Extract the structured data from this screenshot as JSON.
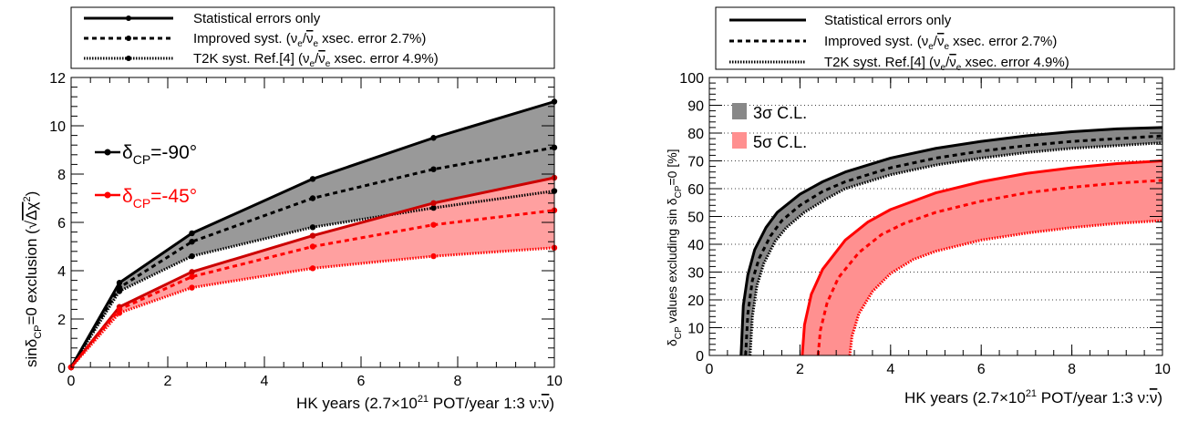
{
  "legend_entries": [
    {
      "style": "solid",
      "label_parts": [
        "Statistical errors only"
      ]
    },
    {
      "style": "dashed",
      "label_parts": [
        "Improved syst. (",
        "ν",
        "e",
        "/",
        "ν",
        "e",
        " xsec. error 2.7%)"
      ]
    },
    {
      "style": "dotted",
      "label_parts": [
        "T2K syst. Ref.[4] (",
        "ν",
        "e",
        "/",
        "ν",
        "e",
        " xsec. error 4.9%)"
      ]
    }
  ],
  "chart_data": [
    {
      "type": "line",
      "xlabel_parts": [
        "HK years (2.7×10",
        "21",
        " POT/year 1:3 ν:",
        "ν",
        ")"
      ],
      "ylabel_parts": [
        "sinδ",
        "CP",
        "=0 exclusion (",
        "√",
        "Δχ",
        "2",
        ")"
      ],
      "xlim": [
        0,
        10
      ],
      "ylim": [
        0,
        12
      ],
      "xticks": [
        0,
        2,
        4,
        6,
        8,
        10
      ],
      "yticks": [
        0,
        2,
        4,
        6,
        8,
        10,
        12
      ],
      "annotations": [
        {
          "label": "δ",
          "sub": "CP",
          "value": "=-90°",
          "color": "#000000"
        },
        {
          "label": "δ",
          "sub": "CP",
          "value": "=-45°",
          "color": "#ff0000"
        }
      ],
      "series": [
        {
          "group": "δCP=-90°",
          "style": "solid",
          "color": "#000000",
          "x": [
            0,
            1,
            2.5,
            5,
            7.5,
            10
          ],
          "y": [
            0,
            3.5,
            5.55,
            7.8,
            9.5,
            11.0
          ]
        },
        {
          "group": "δCP=-90°",
          "style": "dashed",
          "color": "#000000",
          "x": [
            0,
            1,
            2.5,
            5,
            7.5,
            10
          ],
          "y": [
            0,
            3.3,
            5.2,
            7.0,
            8.2,
            9.1
          ]
        },
        {
          "group": "δCP=-90°",
          "style": "dotted",
          "color": "#000000",
          "x": [
            0,
            1,
            2.5,
            5,
            7.5,
            10
          ],
          "y": [
            0,
            3.15,
            4.6,
            5.8,
            6.6,
            7.3
          ]
        },
        {
          "group": "δCP=-45°",
          "style": "solid",
          "color": "#cc0000",
          "x": [
            0,
            1,
            2.5,
            5,
            7.5,
            10
          ],
          "y": [
            0,
            2.5,
            3.95,
            5.45,
            6.8,
            7.85
          ]
        },
        {
          "group": "δCP=-45°",
          "style": "dashed",
          "color": "#ff0000",
          "x": [
            0,
            1,
            2.5,
            5,
            7.5,
            10
          ],
          "y": [
            0,
            2.4,
            3.75,
            5.0,
            5.9,
            6.5
          ]
        },
        {
          "group": "δCP=-45°",
          "style": "dotted",
          "color": "#ff0000",
          "x": [
            0,
            1,
            2.5,
            5,
            7.5,
            10
          ],
          "y": [
            0,
            2.25,
            3.3,
            4.1,
            4.6,
            4.95
          ]
        }
      ],
      "bands": [
        {
          "color": "#999999",
          "upper": "solid -90",
          "lower": "dotted -90"
        },
        {
          "color": "#ffa0a0",
          "upper": "solid -45",
          "lower": "dotted -45"
        }
      ]
    },
    {
      "type": "line",
      "xlabel_parts": [
        "HK years (2.7×10",
        "21",
        " POT/year 1:3 ν:",
        "ν",
        ")"
      ],
      "ylabel_parts": [
        "δ",
        "CP",
        " values excluding sin δ",
        "CP",
        "=0 [%]"
      ],
      "xlim": [
        0,
        10
      ],
      "ylim": [
        0,
        100
      ],
      "xticks": [
        0,
        2,
        4,
        6,
        8,
        10
      ],
      "yticks": [
        0,
        10,
        20,
        30,
        40,
        50,
        60,
        70,
        80,
        90,
        100
      ],
      "band_legend": [
        {
          "label": "3σ C.L.",
          "color": "#888888"
        },
        {
          "label": "5σ C.L.",
          "color": "#ff9090"
        }
      ],
      "series": [
        {
          "group": "3σ",
          "style": "solid",
          "color": "#000000",
          "x": [
            0.7,
            0.75,
            0.85,
            1.0,
            1.25,
            1.5,
            2,
            2.5,
            3,
            4,
            5,
            6,
            7,
            8,
            9,
            10
          ],
          "y": [
            0,
            18,
            29,
            38,
            46,
            51.5,
            58,
            62.5,
            66,
            71,
            74.5,
            77,
            79,
            80.5,
            81.5,
            82
          ]
        },
        {
          "group": "3σ",
          "style": "dashed",
          "color": "#000000",
          "x": [
            0.8,
            0.85,
            0.95,
            1.1,
            1.35,
            1.6,
            2,
            2.5,
            3,
            4,
            5,
            6,
            7,
            8,
            9,
            10
          ],
          "y": [
            0,
            15,
            27,
            35,
            43,
            48.5,
            54,
            59,
            62.5,
            67.5,
            71,
            73.5,
            75.5,
            77,
            78,
            79
          ]
        },
        {
          "group": "3σ",
          "style": "dotted",
          "color": "#000000",
          "x": [
            0.9,
            0.95,
            1.05,
            1.2,
            1.45,
            1.7,
            2.1,
            2.6,
            3,
            4,
            5,
            6,
            7,
            8,
            9,
            10
          ],
          "y": [
            0,
            14,
            25,
            33,
            41,
            46,
            51.5,
            56.5,
            60,
            65,
            68.5,
            71,
            73,
            74.5,
            75.5,
            76.5
          ]
        },
        {
          "group": "5σ",
          "style": "solid",
          "color": "#ff0000",
          "x": [
            2.05,
            2.1,
            2.25,
            2.5,
            3,
            3.5,
            4,
            5,
            6,
            7,
            8,
            9,
            10
          ],
          "y": [
            0,
            11,
            22,
            31,
            41.5,
            48,
            52.5,
            58.5,
            62.5,
            65.5,
            67.5,
            69,
            70
          ]
        },
        {
          "group": "5σ",
          "style": "dashed",
          "color": "#ff0000",
          "x": [
            2.4,
            2.45,
            2.6,
            2.85,
            3.3,
            3.8,
            4.3,
            5,
            6,
            7,
            8,
            9,
            10
          ],
          "y": [
            0,
            9,
            19,
            28,
            37,
            43.5,
            47.5,
            51.5,
            55.5,
            58.5,
            60.5,
            62,
            63
          ]
        },
        {
          "group": "5σ",
          "style": "dotted",
          "color": "#ff0000",
          "x": [
            3.1,
            3.15,
            3.3,
            3.6,
            4,
            4.5,
            5,
            6,
            7,
            8,
            9,
            10
          ],
          "y": [
            0,
            7,
            15,
            23,
            29.5,
            34.5,
            37.5,
            41.5,
            44,
            46,
            47.5,
            48.5
          ]
        }
      ],
      "bands": [
        {
          "color": "#888888",
          "upper": "solid 3σ",
          "lower": "dotted 3σ"
        },
        {
          "color": "#ff9090",
          "upper": "solid 5σ",
          "lower": "dotted 5σ"
        }
      ]
    }
  ]
}
